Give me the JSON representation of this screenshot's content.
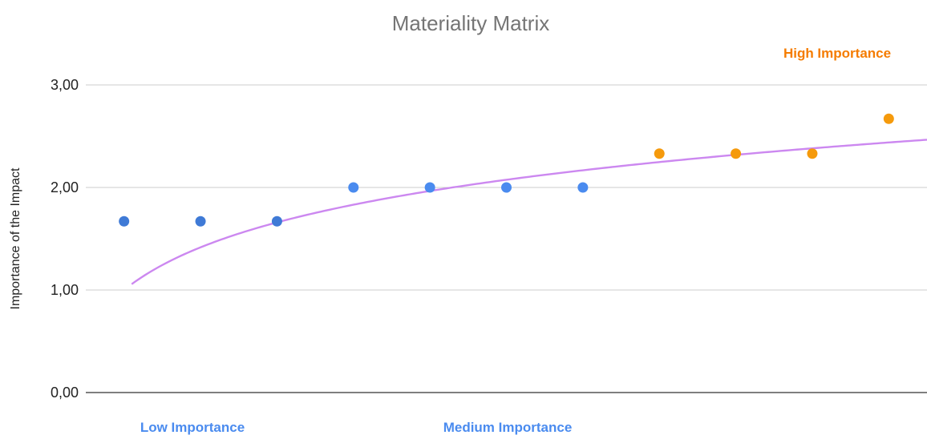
{
  "chart_data": {
    "type": "scatter",
    "title": "Materiality Matrix",
    "xlabel": "",
    "ylabel": "Importance of the Impact",
    "ylim": [
      0,
      3
    ],
    "xlim": [
      0.5,
      11.5
    ],
    "y_ticks": [
      "0,00",
      "1,00",
      "2,00",
      "3,00"
    ],
    "grid": true,
    "legend": "none",
    "series": [
      {
        "color": "#3f7ad6",
        "x": [
          1,
          2,
          3
        ],
        "y": [
          1.67,
          1.67,
          1.67
        ]
      },
      {
        "color": "#4a8bef",
        "x": [
          4,
          5,
          6,
          7
        ],
        "y": [
          2.0,
          2.0,
          2.0,
          2.0
        ]
      },
      {
        "color": "#f59a0c",
        "x": [
          8,
          9,
          10,
          11
        ],
        "y": [
          2.33,
          2.33,
          2.33,
          2.67
        ]
      }
    ],
    "trendline": {
      "type": "logarithmic",
      "color": "#cc88f0",
      "x_start": 1.1,
      "x_end": 11.5,
      "a": 1.0,
      "b": 0.6
    },
    "annotations": [
      {
        "text": "High Importance",
        "color": "#f57c00",
        "position": "top-right"
      },
      {
        "text": "Low Importance",
        "color": "#4a8bef",
        "position": "bottom-left"
      },
      {
        "text": "Medium Importance",
        "color": "#4a8bef",
        "position": "bottom-center"
      }
    ]
  }
}
